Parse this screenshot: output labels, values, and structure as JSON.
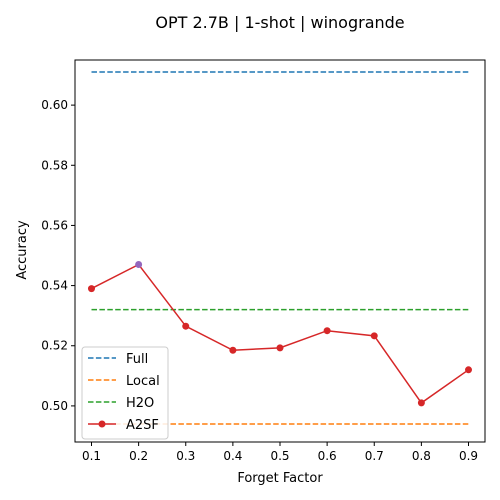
{
  "chart_data": {
    "type": "line",
    "title": "OPT 2.7B | 1-shot | winogrande",
    "xlabel": "Forget Factor",
    "ylabel": "Accuracy",
    "xlim": [
      0.065,
      0.935
    ],
    "ylim": [
      0.488,
      0.615
    ],
    "xticks": [
      "0.1",
      "0.2",
      "0.3",
      "0.4",
      "0.5",
      "0.6",
      "0.7",
      "0.8",
      "0.9"
    ],
    "xtick_values": [
      0.1,
      0.2,
      0.3,
      0.4,
      0.5,
      0.6,
      0.7,
      0.8,
      0.9
    ],
    "yticks": [
      "0.50",
      "0.52",
      "0.54",
      "0.56",
      "0.58",
      "0.60"
    ],
    "ytick_values": [
      0.5,
      0.52,
      0.54,
      0.56,
      0.58,
      0.6
    ],
    "grid": false,
    "legend_position": "lower-left",
    "baselines": [
      {
        "name": "Full",
        "value": 0.611,
        "color": "#1f77b4",
        "style": "dashed"
      },
      {
        "name": "Local",
        "value": 0.494,
        "color": "#ff7f0e",
        "style": "dashed"
      },
      {
        "name": "H2O",
        "value": 0.532,
        "color": "#2ca02c",
        "style": "dashed"
      }
    ],
    "series": [
      {
        "name": "A2SF",
        "color": "#d62728",
        "marker": "circle",
        "x": [
          0.1,
          0.2,
          0.3,
          0.4,
          0.5,
          0.6,
          0.7,
          0.8,
          0.9
        ],
        "values": [
          0.539,
          0.547,
          0.5265,
          0.5185,
          0.5193,
          0.525,
          0.5233,
          0.501,
          0.512
        ],
        "highlight_index": 1,
        "highlight_color": "#9467bd"
      }
    ]
  }
}
